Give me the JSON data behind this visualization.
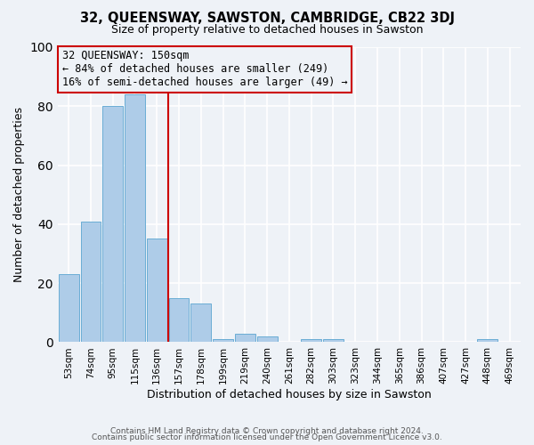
{
  "title": "32, QUEENSWAY, SAWSTON, CAMBRIDGE, CB22 3DJ",
  "subtitle": "Size of property relative to detached houses in Sawston",
  "xlabel": "Distribution of detached houses by size in Sawston",
  "ylabel": "Number of detached properties",
  "bar_labels": [
    "53sqm",
    "74sqm",
    "95sqm",
    "115sqm",
    "136sqm",
    "157sqm",
    "178sqm",
    "199sqm",
    "219sqm",
    "240sqm",
    "261sqm",
    "282sqm",
    "303sqm",
    "323sqm",
    "344sqm",
    "365sqm",
    "386sqm",
    "407sqm",
    "427sqm",
    "448sqm",
    "469sqm"
  ],
  "bar_values": [
    23,
    41,
    80,
    84,
    35,
    15,
    13,
    1,
    3,
    2,
    0,
    1,
    1,
    0,
    0,
    0,
    0,
    0,
    0,
    1,
    0
  ],
  "bar_color": "#aecce8",
  "bar_edgecolor": "#6aadd5",
  "ylim": [
    0,
    100
  ],
  "yticks": [
    0,
    20,
    40,
    60,
    80,
    100
  ],
  "property_line_x": 4.5,
  "property_line_color": "#cc0000",
  "annotation_title": "32 QUEENSWAY: 150sqm",
  "annotation_line1": "← 84% of detached houses are smaller (249)",
  "annotation_line2": "16% of semi-detached houses are larger (49) →",
  "annotation_box_edgecolor": "#cc0000",
  "background_color": "#eef2f7",
  "grid_color": "#ffffff",
  "footer_line1": "Contains HM Land Registry data © Crown copyright and database right 2024.",
  "footer_line2": "Contains public sector information licensed under the Open Government Licence v3.0."
}
